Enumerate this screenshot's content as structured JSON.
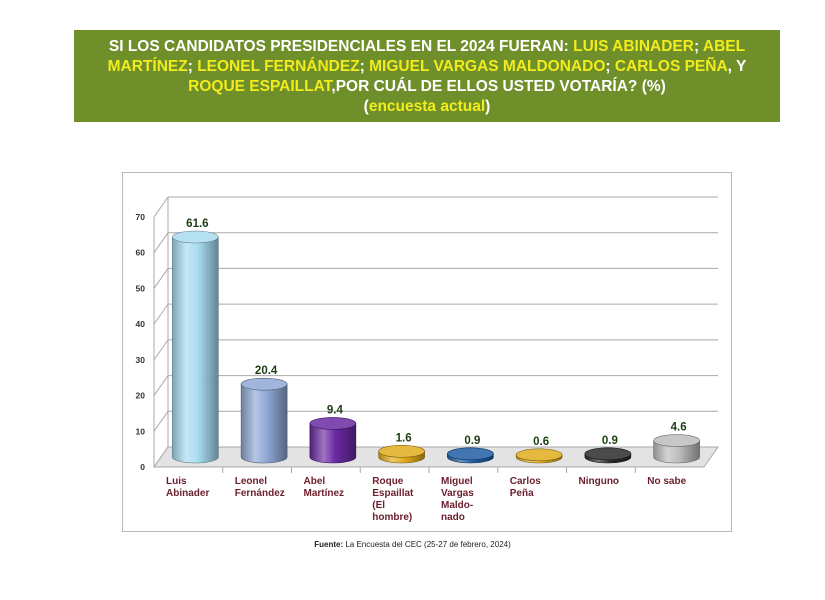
{
  "title": {
    "parts": [
      {
        "text": "SI LOS CANDIDATOS PRESIDENCIALES EN EL 2024 FUERAN: ",
        "hl": false
      },
      {
        "text": "LUIS ABINADER",
        "hl": true
      },
      {
        "text": "; ",
        "hl": false
      },
      {
        "text": "ABEL MARTÍNEZ",
        "hl": true
      },
      {
        "text": "; ",
        "hl": false
      },
      {
        "text": "LEONEL FERNÁNDEZ",
        "hl": true
      },
      {
        "text": "; ",
        "hl": false
      },
      {
        "text": "MIGUEL VARGAS MALDONADO",
        "hl": true
      },
      {
        "text": "; ",
        "hl": false
      },
      {
        "text": "CARLOS PEÑA",
        "hl": true
      },
      {
        "text": ", Y ",
        "hl": false
      },
      {
        "text": "ROQUE ESPAILLAT",
        "hl": true
      },
      {
        "text": ",POR CUÁL DE ELLOS USTED VOTARÍA? (%)",
        "hl": false
      }
    ],
    "subtitle_open": "(",
    "subtitle_text": "encuesta actual",
    "subtitle_close": ")",
    "text_color": "#ffffff",
    "highlight_color": "#f2ec1c",
    "background": "#6f8f2a"
  },
  "chart_data": {
    "type": "bar",
    "categories": [
      [
        "Luis",
        "Abinader"
      ],
      [
        "Leonel",
        "Fernández"
      ],
      [
        "Abel",
        "Martínez"
      ],
      [
        "Roque",
        "Espaillat",
        "(El",
        "hombre)"
      ],
      [
        "Miguel",
        "Vargas",
        "Maldo-",
        "nado"
      ],
      [
        "Carlos",
        "Peña"
      ],
      [
        "Ninguno"
      ],
      [
        "No sabe"
      ]
    ],
    "values": [
      61.6,
      20.4,
      9.4,
      1.6,
      0.9,
      0.6,
      0.9,
      4.6
    ],
    "value_labels": [
      "61.6",
      "20.4",
      "9.4",
      "1.6",
      "0.9",
      "0.6",
      "0.9",
      "4.6"
    ],
    "colors": [
      "#a8dcf0",
      "#8fa9d6",
      "#6b2aa3",
      "#e2ad1c",
      "#1f5ea6",
      "#e2ad1c",
      "#2b2b2b",
      "#bdbdbd"
    ],
    "ylim": [
      0,
      70
    ],
    "yticks": [
      "0",
      "10",
      "20",
      "30",
      "40",
      "50",
      "60",
      "70"
    ],
    "grid": true,
    "legend": "none"
  },
  "source": {
    "label": "Fuente:",
    "text": " La Encuesta del CEC (25-27 de febrero, 2024)"
  }
}
